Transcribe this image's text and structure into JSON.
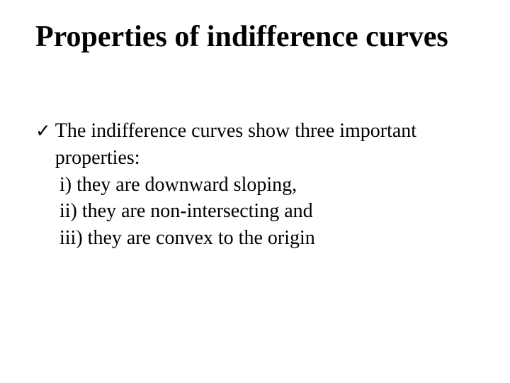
{
  "slide": {
    "title": "Properties of indifference curves",
    "bullet": {
      "icon": "✓",
      "lead_text": "The indifference curves show three important properties:",
      "items": [
        "i) they are downward sloping,",
        "ii) they are non-intersecting and",
        "iii) they are convex to the origin"
      ]
    },
    "colors": {
      "background": "#ffffff",
      "text": "#000000"
    },
    "typography": {
      "title_fontsize": 42,
      "body_fontsize": 28,
      "font_family": "Times New Roman"
    }
  }
}
